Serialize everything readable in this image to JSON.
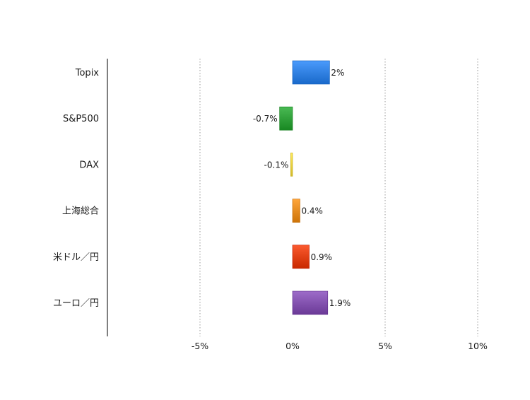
{
  "chart_data": {
    "type": "bar",
    "orientation": "horizontal",
    "categories": [
      "Topix",
      "S&P500",
      "DAX",
      "上海総合",
      "米ドル／円",
      "ユーロ／円"
    ],
    "values": [
      2,
      -0.7,
      -0.1,
      0.4,
      0.9,
      1.9
    ],
    "value_labels": [
      "2%",
      "-0.7%",
      "-0.1%",
      "0.4%",
      "0.9%",
      "1.9%"
    ],
    "colors": [
      "#2f7fe0",
      "#2e9e38",
      "#e7cf3d",
      "#e38a1f",
      "#df3e13",
      "#8150ad"
    ],
    "xlim": [
      -10,
      10
    ],
    "x_ticks": [
      -5,
      0,
      5,
      10
    ],
    "x_tick_labels": [
      "-5%",
      "0%",
      "5%",
      "10%"
    ],
    "grid": "vertical-dotted",
    "title": "",
    "xlabel": "",
    "ylabel": ""
  }
}
